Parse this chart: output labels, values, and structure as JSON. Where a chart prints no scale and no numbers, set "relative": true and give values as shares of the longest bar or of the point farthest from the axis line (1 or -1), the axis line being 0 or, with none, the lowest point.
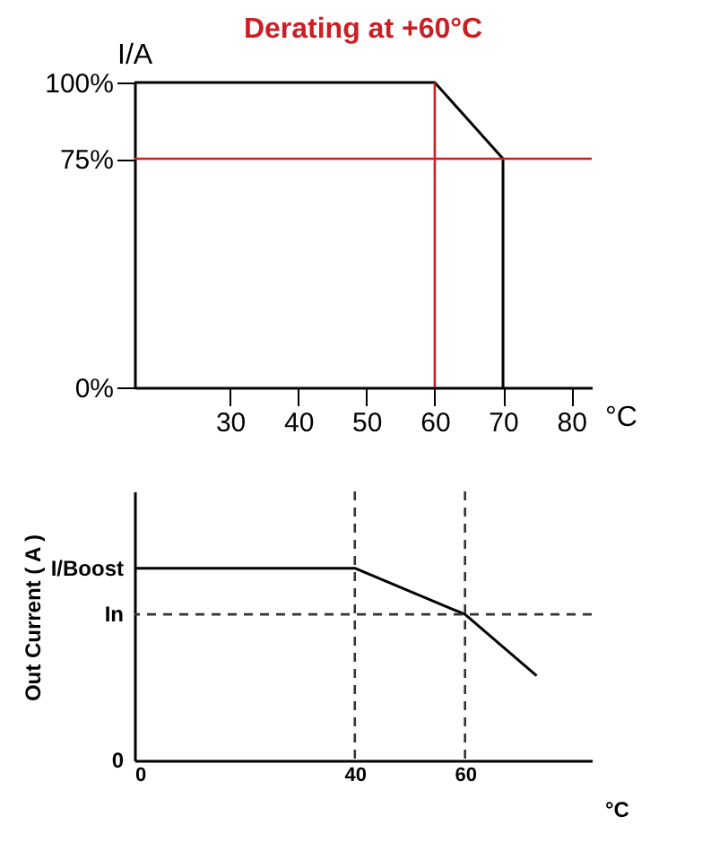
{
  "chart_data": [
    {
      "type": "line",
      "title": "Derating at +60°C",
      "xlabel": "°C",
      "ylabel": "I/A",
      "x": [
        16,
        60,
        70,
        70
      ],
      "series": [
        {
          "color": "#000000",
          "values": [
            100,
            100,
            75,
            0
          ]
        }
      ],
      "xlim": [
        16,
        83
      ],
      "xticks": [
        30,
        40,
        50,
        60,
        70,
        80
      ],
      "ylim": [
        0,
        100
      ],
      "yticks": [
        {
          "value": 0,
          "label": "0%"
        },
        {
          "value": 75,
          "label": "75%"
        },
        {
          "value": 100,
          "label": "100%"
        }
      ],
      "ref_lines": [
        {
          "axis": "y",
          "value": 75,
          "color": "#cc1f24"
        },
        {
          "axis": "x",
          "value": 60,
          "color": "#cc1f24"
        }
      ]
    },
    {
      "type": "line",
      "xlabel": "°C",
      "ylabel": "Out Current ( A )",
      "x": [
        0,
        40,
        60,
        73
      ],
      "relative": true,
      "series": [
        {
          "color": "#000000",
          "values": [
            1,
            1,
            0.76,
            0.44
          ]
        }
      ],
      "xlim": [
        0,
        83
      ],
      "xticks": [
        0,
        40,
        60
      ],
      "ref_lines": [
        {
          "axis": "x",
          "value": 40,
          "line_style": "dashed"
        },
        {
          "axis": "x",
          "value": 60,
          "line_style": "dashed"
        },
        {
          "axis": "y",
          "value": 0.76,
          "label": "In",
          "line_style": "dashed"
        }
      ],
      "annotations": [
        "I/Boost",
        "0"
      ]
    }
  ]
}
